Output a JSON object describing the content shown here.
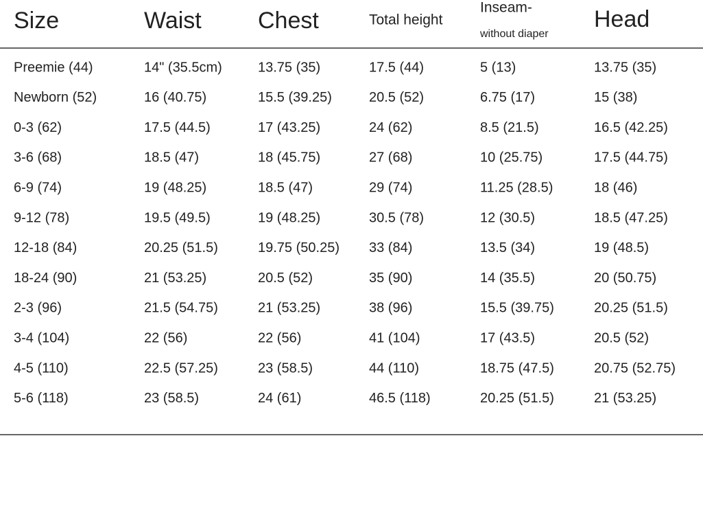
{
  "table": {
    "header": {
      "size": "Size",
      "waist": "Waist",
      "chest": "Chest",
      "total_height": "Total height",
      "inseam": "Inseam-",
      "inseam_note": "without diaper",
      "head": "Head"
    },
    "rows": [
      [
        "Preemie (44)",
        "14\" (35.5cm)",
        "13.75 (35)",
        "17.5 (44)",
        "5 (13)",
        "13.75 (35)"
      ],
      [
        "Newborn (52)",
        "16 (40.75)",
        "15.5 (39.25)",
        "20.5 (52)",
        "6.75 (17)",
        "15 (38)"
      ],
      [
        "0-3 (62)",
        "17.5 (44.5)",
        "17 (43.25)",
        "24 (62)",
        "8.5 (21.5)",
        "16.5 (42.25)"
      ],
      [
        "3-6 (68)",
        "18.5 (47)",
        "18 (45.75)",
        "27 (68)",
        "10 (25.75)",
        "17.5 (44.75)"
      ],
      [
        "6-9 (74)",
        "19 (48.25)",
        "18.5 (47)",
        "29 (74)",
        "11.25 (28.5)",
        "18 (46)"
      ],
      [
        "9-12 (78)",
        "19.5 (49.5)",
        "19 (48.25)",
        "30.5 (78)",
        "12 (30.5)",
        "18.5 (47.25)"
      ],
      [
        "12-18 (84)",
        "20.25 (51.5)",
        "19.75 (50.25)",
        "33 (84)",
        "13.5 (34)",
        "19 (48.5)"
      ],
      [
        "18-24 (90)",
        "21 (53.25)",
        "20.5 (52)",
        "35 (90)",
        "14 (35.5)",
        "20 (50.75)"
      ],
      [
        "2-3 (96)",
        "21.5 (54.75)",
        "21 (53.25)",
        "38 (96)",
        "15.5 (39.75)",
        "20.25 (51.5)"
      ],
      [
        "3-4 (104)",
        "22 (56)",
        "22 (56)",
        "41 (104)",
        "17 (43.5)",
        "20.5 (52)"
      ],
      [
        "4-5 (110)",
        "22.5 (57.25)",
        "23 (58.5)",
        "44 (110)",
        "18.75 (47.5)",
        "20.75 (52.75)"
      ],
      [
        "5-6 (118)",
        "23 (58.5)",
        "24 (61)",
        "46.5 (118)",
        "20.25 (51.5)",
        "21 (53.25)"
      ]
    ]
  }
}
